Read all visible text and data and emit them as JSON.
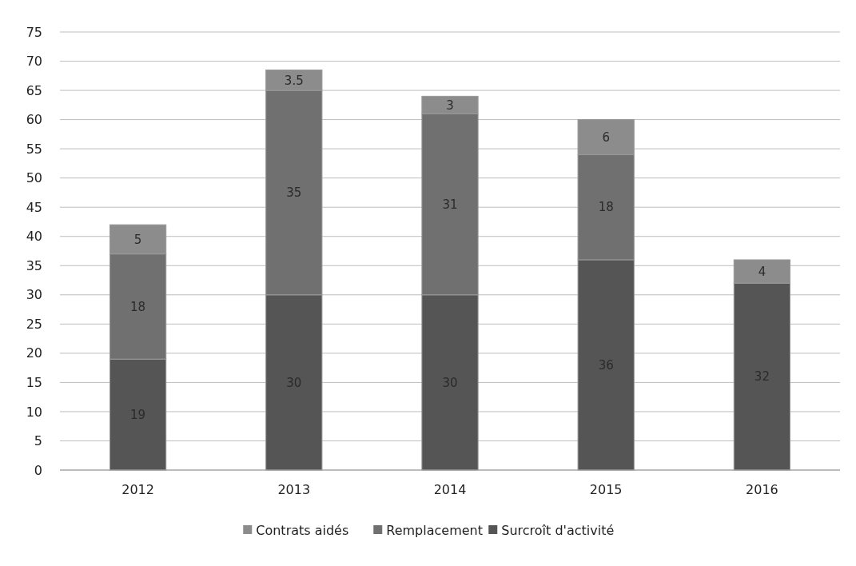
{
  "chart_data": {
    "type": "bar",
    "stacked": true,
    "categories": [
      "2012",
      "2013",
      "2014",
      "2015",
      "2016"
    ],
    "series": [
      {
        "name": "Surcroît d'activité",
        "color": "#555555",
        "values": [
          19,
          30,
          30,
          36,
          32
        ]
      },
      {
        "name": "Remplacement",
        "color": "#707070",
        "values": [
          18,
          35,
          31,
          18,
          null
        ]
      },
      {
        "name": "Contrats aidés",
        "color": "#8c8c8c",
        "values": [
          5,
          3.5,
          3,
          6,
          4
        ]
      }
    ],
    "ylim": [
      0,
      75
    ],
    "yticks": [
      0,
      5,
      10,
      15,
      20,
      25,
      30,
      35,
      40,
      45,
      50,
      55,
      60,
      65,
      70,
      75
    ],
    "grid": "y",
    "legend": "bottom",
    "data_labels": true
  }
}
